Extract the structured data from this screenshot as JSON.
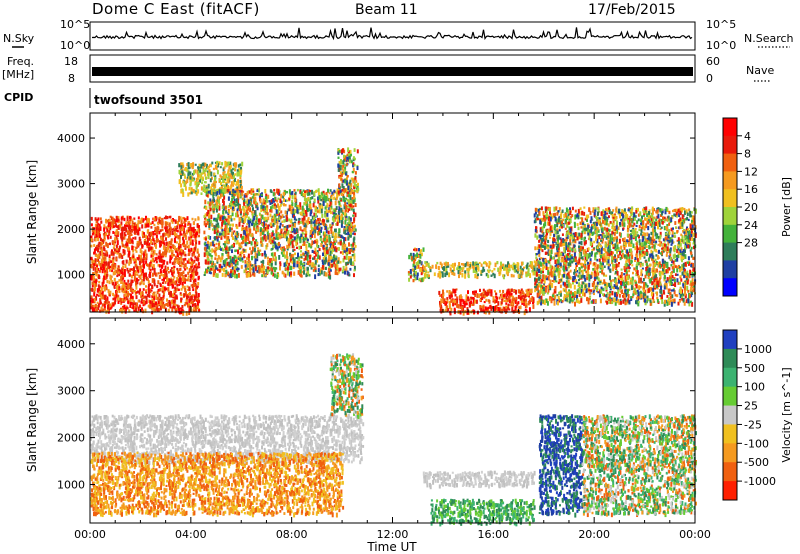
{
  "header": {
    "title": "Dome C East (fitACF)",
    "beam": "Beam 11",
    "date": "17/Feb/2015"
  },
  "nsky_panel": {
    "left_label": "N.Sky",
    "right_label": "N.Search",
    "tick_top": "10^5",
    "tick_bottom": "10^0"
  },
  "freq_panel": {
    "left_label_line1": "Freq.",
    "left_label_line2": "[MHz]",
    "right_label": "Nave",
    "left_tick_top": "18",
    "left_tick_bottom": "8",
    "right_tick_top": "60",
    "right_tick_bottom": "0"
  },
  "cpid_panel": {
    "label": "CPID",
    "value": "twofsound 3501"
  },
  "chart_data": [
    {
      "type": "heatmap",
      "parameter": "Power",
      "ylabel": "Slant Range [km]",
      "xlabel": "Time UT",
      "x_ticks": [
        "00:00",
        "04:00",
        "08:00",
        "12:00",
        "16:00",
        "20:00",
        "00:00"
      ],
      "x_range_hours": [
        0,
        24
      ],
      "y_ticks": [
        1000,
        2000,
        3000,
        4000
      ],
      "ylim": [
        180,
        4550
      ],
      "colorbar": {
        "label": "Power [dB]",
        "ticks": [
          "4",
          "8",
          "12",
          "16",
          "20",
          "24",
          "28"
        ],
        "colors": [
          "#0000ff",
          "#1f3fa3",
          "#2e7d5a",
          "#43b23a",
          "#9fd33a",
          "#f0c020",
          "#f59a20",
          "#f06010",
          "#e81a0a",
          "#ff0000"
        ]
      },
      "scatter_regions": [
        {
          "t": [
            0,
            4.3
          ],
          "r": [
            200,
            2300
          ],
          "level": "high"
        },
        {
          "t": [
            3.5,
            6
          ],
          "r": [
            2800,
            3500
          ],
          "level": "mid"
        },
        {
          "t": [
            4.5,
            10.5
          ],
          "r": [
            1000,
            2900
          ],
          "level": "mixed"
        },
        {
          "t": [
            9.8,
            10.6
          ],
          "r": [
            2800,
            3800
          ],
          "level": "mixed"
        },
        {
          "t": [
            12.6,
            13.2
          ],
          "r": [
            900,
            1600
          ],
          "level": "mixed"
        },
        {
          "t": [
            13.2,
            17.6
          ],
          "r": [
            1000,
            1300
          ],
          "level": "mid"
        },
        {
          "t": [
            13.8,
            17.6
          ],
          "r": [
            200,
            700
          ],
          "level": "high"
        },
        {
          "t": [
            17.6,
            24
          ],
          "r": [
            400,
            2500
          ],
          "level": "mixed"
        }
      ]
    },
    {
      "type": "heatmap",
      "parameter": "Velocity",
      "ylabel": "Slant Range [km]",
      "xlabel": "Time UT",
      "x_ticks": [
        "00:00",
        "04:00",
        "08:00",
        "12:00",
        "16:00",
        "20:00",
        "00:00"
      ],
      "x_range_hours": [
        0,
        24
      ],
      "y_ticks": [
        1000,
        2000,
        3000,
        4000
      ],
      "ylim": [
        180,
        4550
      ],
      "colorbar": {
        "label": "Velocity [m s^-1]",
        "ticks": [
          "1000",
          "500",
          "100",
          "25",
          "-25",
          "-100",
          "-500",
          "-1000"
        ],
        "colors": [
          "#2040c0",
          "#2e8b57",
          "#3cb371",
          "#66cc33",
          "#c8c8c8",
          "#f0c020",
          "#f59a20",
          "#f06010",
          "#ff2000"
        ]
      },
      "scatter_regions": [
        {
          "t": [
            0,
            10.8
          ],
          "r": [
            1500,
            2500
          ],
          "level": "grey"
        },
        {
          "t": [
            0,
            10
          ],
          "r": [
            400,
            1700
          ],
          "level": "orange"
        },
        {
          "t": [
            9.5,
            10.8
          ],
          "r": [
            2500,
            3800
          ],
          "level": "mixed"
        },
        {
          "t": [
            13.2,
            17.6
          ],
          "r": [
            1000,
            1300
          ],
          "level": "grey"
        },
        {
          "t": [
            13.5,
            17.6
          ],
          "r": [
            200,
            700
          ],
          "level": "green"
        },
        {
          "t": [
            17.8,
            19.5
          ],
          "r": [
            400,
            2500
          ],
          "level": "blue"
        },
        {
          "t": [
            19.5,
            24
          ],
          "r": [
            400,
            2500
          ],
          "level": "mixed"
        }
      ]
    }
  ]
}
